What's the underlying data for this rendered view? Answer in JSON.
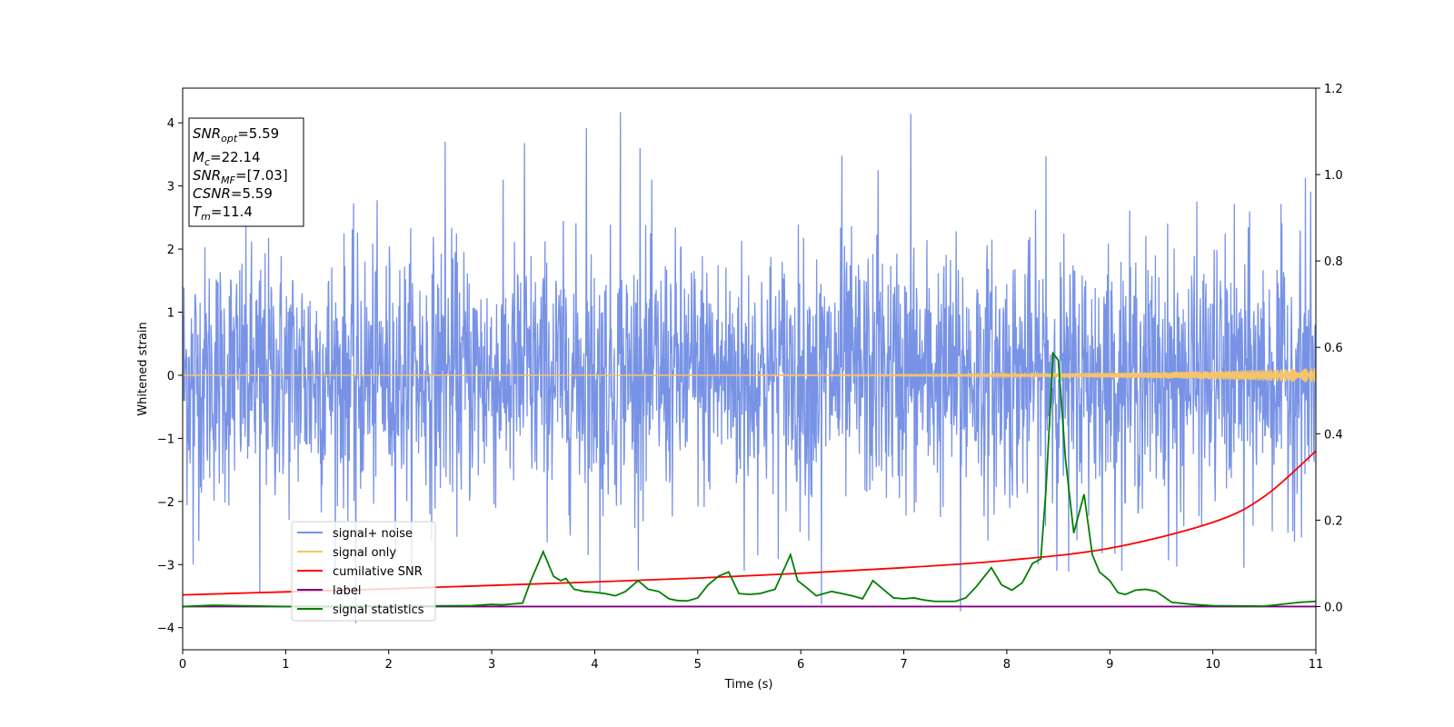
{
  "chart_data": {
    "type": "line",
    "title": "",
    "xlabel": "Time (s)",
    "ylabel": "Whitened strain",
    "xlim": [
      0,
      11
    ],
    "ylim": [
      -4.35,
      4.55
    ],
    "y2lim": [
      -0.1,
      1.2
    ],
    "x_ticks": [
      "0",
      "1",
      "2",
      "3",
      "4",
      "5",
      "6",
      "7",
      "8",
      "9",
      "10",
      "11"
    ],
    "y_ticks": [
      "−4",
      "−3",
      "−2",
      "−1",
      "0",
      "1",
      "2",
      "3",
      "4"
    ],
    "y2_ticks": [
      "0.0",
      "0.2",
      "0.4",
      "0.6",
      "0.8",
      "1.0",
      "1.2"
    ],
    "grid": false,
    "legend_position": "lower-left",
    "series": [
      {
        "name": "signal+ noise",
        "color": "#7893e6",
        "axis": "left",
        "kind": "gaussian-noise",
        "std": 1.0,
        "envelope": [
          -2.3,
          2.3
        ],
        "notable_spikes": [
          {
            "x": 4.25,
            "y": 4.17
          },
          {
            "x": 7.07,
            "y": 4.14
          },
          {
            "x": 3.92,
            "y": 3.92
          },
          {
            "x": 2.55,
            "y": 3.7
          },
          {
            "x": 3.32,
            "y": 3.68
          },
          {
            "x": 4.44,
            "y": 3.6
          },
          {
            "x": 6.4,
            "y": 3.48
          },
          {
            "x": 8.38,
            "y": 3.47
          },
          {
            "x": 6.75,
            "y": 3.25
          },
          {
            "x": 10.9,
            "y": 3.13
          },
          {
            "x": 0.1,
            "y": 2.55
          },
          {
            "x": 1.68,
            "y": -3.93
          },
          {
            "x": 7.55,
            "y": -3.74
          },
          {
            "x": 6.2,
            "y": -3.63
          },
          {
            "x": 4.05,
            "y": -3.45
          },
          {
            "x": 0.75,
            "y": -3.45
          },
          {
            "x": 8.6,
            "y": -3.11
          },
          {
            "x": 0.1,
            "y": -3.0
          },
          {
            "x": 5.45,
            "y": -3.1
          },
          {
            "x": 10.3,
            "y": -3.05
          },
          {
            "x": 9.65,
            "y": -3.03
          }
        ]
      },
      {
        "name": "signal only",
        "color": "#f6c46a",
        "axis": "left",
        "kind": "chirp",
        "amplitude_start": 0.005,
        "amplitude_end": 0.14
      },
      {
        "name": "cumilative SNR",
        "color": "#ff0000",
        "axis": "right",
        "x": [
          0,
          1,
          2,
          3,
          4,
          5,
          6,
          7,
          8,
          9,
          10,
          10.5,
          11
        ],
        "y": [
          0.027,
          0.034,
          0.041,
          0.049,
          0.057,
          0.066,
          0.077,
          0.09,
          0.107,
          0.135,
          0.195,
          0.255,
          0.36
        ]
      },
      {
        "name": "label",
        "color": "#800080",
        "axis": "right",
        "x": [
          0,
          11
        ],
        "y": [
          0,
          0
        ]
      },
      {
        "name": "signal statistics",
        "color": "#008000",
        "axis": "right",
        "x": [
          0,
          0.3,
          1.0,
          2.0,
          2.8,
          3.0,
          3.1,
          3.2,
          3.3,
          3.38,
          3.5,
          3.6,
          3.67,
          3.72,
          3.8,
          3.9,
          4.0,
          4.1,
          4.2,
          4.3,
          4.42,
          4.52,
          4.62,
          4.72,
          4.8,
          4.9,
          5.0,
          5.1,
          5.2,
          5.3,
          5.4,
          5.5,
          5.6,
          5.75,
          5.9,
          5.97,
          6.05,
          6.15,
          6.3,
          6.5,
          6.6,
          6.7,
          6.8,
          6.9,
          7.0,
          7.1,
          7.2,
          7.3,
          7.5,
          7.6,
          7.7,
          7.85,
          7.95,
          8.05,
          8.15,
          8.25,
          8.33,
          8.38,
          8.45,
          8.5,
          8.57,
          8.65,
          8.75,
          8.83,
          8.9,
          9.0,
          9.08,
          9.15,
          9.25,
          9.35,
          9.45,
          9.6,
          9.8,
          10.0,
          10.5,
          10.85,
          11.0
        ],
        "y": [
          0.0,
          0.003,
          0.0,
          0.001,
          0.002,
          0.005,
          0.004,
          0.006,
          0.008,
          0.06,
          0.127,
          0.07,
          0.06,
          0.065,
          0.04,
          0.035,
          0.033,
          0.03,
          0.025,
          0.035,
          0.06,
          0.04,
          0.035,
          0.018,
          0.014,
          0.013,
          0.02,
          0.05,
          0.07,
          0.08,
          0.03,
          0.028,
          0.03,
          0.04,
          0.12,
          0.06,
          0.045,
          0.025,
          0.035,
          0.025,
          0.018,
          0.06,
          0.04,
          0.02,
          0.018,
          0.02,
          0.015,
          0.012,
          0.012,
          0.02,
          0.045,
          0.09,
          0.05,
          0.038,
          0.055,
          0.1,
          0.11,
          0.27,
          0.586,
          0.57,
          0.34,
          0.17,
          0.26,
          0.12,
          0.08,
          0.06,
          0.032,
          0.028,
          0.038,
          0.04,
          0.035,
          0.01,
          0.005,
          0.002,
          0.001,
          0.01,
          0.012
        ]
      }
    ]
  },
  "info_box": {
    "lines": [
      {
        "symbol": "SNR",
        "subscript": "opt",
        "value": "=5.59"
      },
      {
        "symbol": "M",
        "subscript": "c",
        "value": "=22.14"
      },
      {
        "symbol": "SNR",
        "subscript": "MF",
        "value": "=[7.03]"
      },
      {
        "symbol": "CSNR",
        "subscript": "",
        "value": "=5.59"
      },
      {
        "symbol": "T",
        "subscript": "m",
        "value": "=11.4"
      }
    ]
  }
}
